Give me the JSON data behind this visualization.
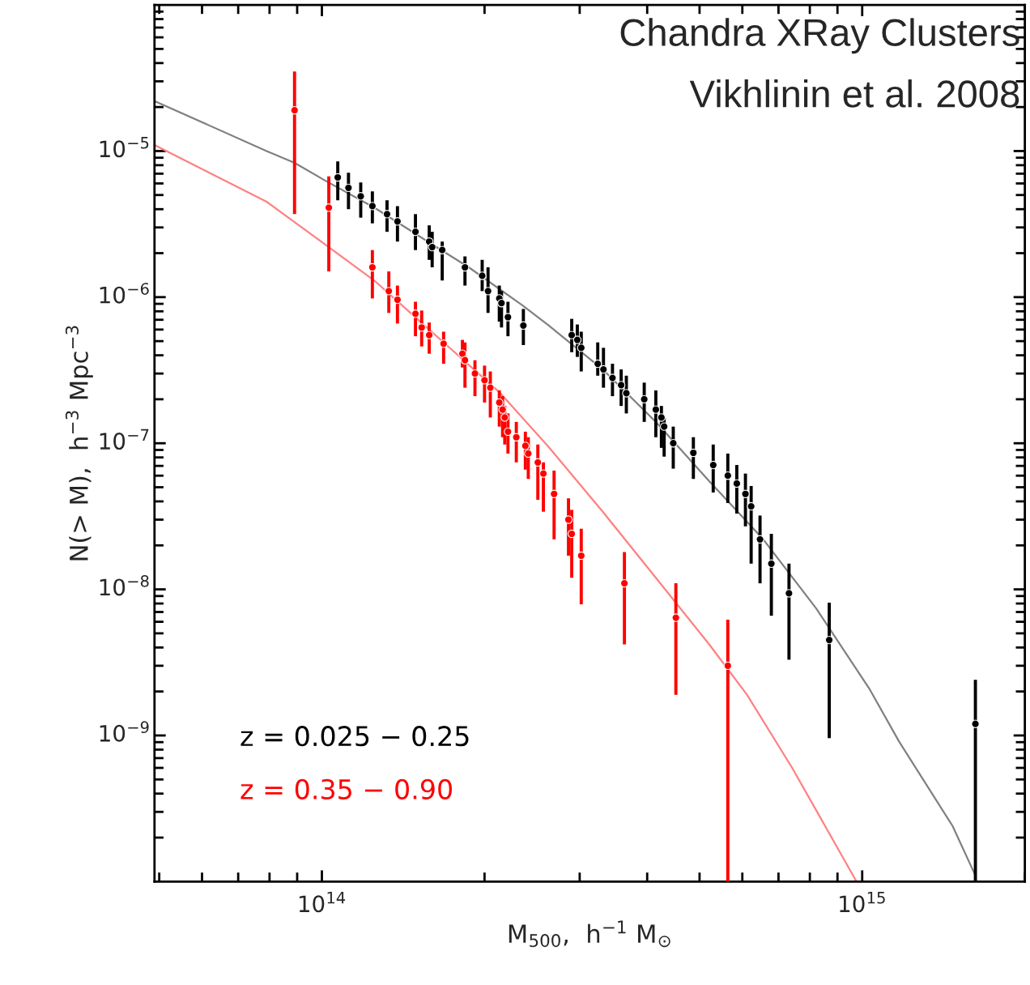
{
  "chart_data": {
    "type": "scatter",
    "xlabel": "M$_{500}$,  h$^{−1}$ M$_{⊙}$",
    "ylabel": "N(> M),  h$^{−3}$ Mpc$^{−3}$",
    "annotations": [
      "Chandra XRay Clusters",
      "Vikhlinin et al. 2008"
    ],
    "log": "xy",
    "xlim": [
      49000000000000.0,
      2000000000000000.0
    ],
    "ylim": [
      1e-10,
      0.0001
    ],
    "xticks": [
      {
        "value": 100000000000000.0,
        "label": "10$^{14}$"
      },
      {
        "value": 1000000000000000.0,
        "label": "10$^{15}$"
      }
    ],
    "yticks": [
      {
        "value": 1e-09,
        "label": "10$^{−9}$"
      },
      {
        "value": 1e-08,
        "label": "10$^{−8}$"
      },
      {
        "value": 1e-07,
        "label": "10$^{−7}$"
      },
      {
        "value": 1e-06,
        "label": "10$^{−6}$"
      },
      {
        "value": 1e-05,
        "label": "10$^{−5}$"
      }
    ],
    "grid": false,
    "legend": "bottom left",
    "marker": "circle",
    "series": [
      {
        "type": "line",
        "marker": "none",
        "color": "#808080",
        "x": [
          49000000000000.0,
          79000000000000.0,
          89000000000000.0,
          102000000000000.0,
          125000000000000.0,
          157000000000000.0,
          187000000000000.0,
          235000000000000.0,
          263000000000000.0,
          331000000000000.0,
          415000000000000.0,
          521000000000000.0,
          656000000000000.0,
          822000000000000.0,
          1030000000000000.0,
          1170000000000000.0,
          1470000000000000.0,
          1620000000000000.0
        ],
        "values": [
          2.2e-05,
          1e-05,
          8.3e-06,
          6.2e-06,
          4.1e-06,
          2.4e-06,
          1.6e-06,
          8.8e-07,
          6.4e-07,
          3.2e-07,
          1.4e-07,
          5.5e-08,
          2.2e-08,
          7.4e-09,
          2.1e-09,
          9.1e-10,
          2.4e-10,
          1.1e-10
        ]
      },
      {
        "type": "line",
        "marker": "none",
        "color": "#ff8080",
        "x": [
          49000000000000.0,
          79000000000000.0,
          103000000000000.0,
          125000000000000.0,
          176000000000000.0,
          214000000000000.0,
          263000000000000.0,
          331000000000000.0,
          415000000000000.0,
          521000000000000.0,
          612000000000000.0,
          742000000000000.0,
          976000000000000.0
        ],
        "values": [
          1.1e-05,
          4.5e-06,
          2.2e-06,
          1.3e-06,
          4.2e-07,
          2.2e-07,
          9.4e-08,
          3.4e-08,
          1.2e-08,
          4.2e-09,
          1.9e-09,
          6e-10,
          1e-10
        ]
      },
      {
        "name": "z = 0.025 − 0.25",
        "color": "#000000",
        "x": [
          107000000000000.0,
          112000000000000.0,
          118000000000000.0,
          124000000000000.0,
          132000000000000.0,
          138000000000000.0,
          149000000000000.0,
          158000000000000.0,
          160000000000000.0,
          167000000000000.0,
          184000000000000.0,
          198000000000000.0,
          203000000000000.0,
          213000000000000.0,
          215000000000000.0,
          221000000000000.0,
          236000000000000.0,
          290000000000000.0,
          297000000000000.0,
          302000000000000.0,
          324000000000000.0,
          332000000000000.0,
          345000000000000.0,
          358000000000000.0,
          366000000000000.0,
          395000000000000.0,
          415000000000000.0,
          425000000000000.0,
          430000000000000.0,
          447000000000000.0,
          487000000000000.0,
          530000000000000.0,
          564000000000000.0,
          586000000000000.0,
          608000000000000.0,
          623000000000000.0,
          647000000000000.0,
          679000000000000.0,
          732000000000000.0,
          869000000000000.0,
          1620000000000000.0
        ],
        "values": [
          6.6e-06,
          5.6e-06,
          4.9e-06,
          4.2e-06,
          3.7e-06,
          3.3e-06,
          2.8e-06,
          2.4e-06,
          2.2e-06,
          2.1e-06,
          1.6e-06,
          1.4e-06,
          1.1e-06,
          9.8e-07,
          9.1e-07,
          7.3e-07,
          6.4e-07,
          5.5e-07,
          5.1e-07,
          4.5e-07,
          3.5e-07,
          3.2e-07,
          2.8e-07,
          2.5e-07,
          2.2e-07,
          2e-07,
          1.7e-07,
          1.5e-07,
          1.3e-07,
          1e-07,
          8.6e-08,
          7.1e-08,
          6e-08,
          5.3e-08,
          4.5e-08,
          3.7e-08,
          2.2e-08,
          1.5e-08,
          9.4e-09,
          4.5e-09,
          1.2e-09
        ],
        "errors": [
          [
            4.6e-06,
            8.5e-06
          ],
          [
            4e-06,
            7.1e-06
          ],
          [
            3.5e-06,
            6.1e-06
          ],
          [
            3.2e-06,
            5.3e-06
          ],
          [
            2.8e-06,
            4.6e-06
          ],
          [
            2.4e-06,
            4.2e-06
          ],
          [
            2.1e-06,
            3.7e-06
          ],
          [
            1.8e-06,
            3.1e-06
          ],
          [
            1.6e-06,
            2.8e-06
          ],
          [
            1.3e-06,
            2.4e-06
          ],
          [
            1.2e-06,
            1.9e-06
          ],
          [
            1.1e-06,
            1.8e-06
          ],
          [
            7.8e-07,
            1.6e-06
          ],
          [
            6.8e-07,
            1.2e-06
          ],
          [
            6.2e-07,
            1.1e-06
          ],
          [
            5.4e-07,
            9.3e-07
          ],
          [
            4.7e-07,
            8.3e-07
          ],
          [
            4.2e-07,
            7.1e-07
          ],
          [
            3.9e-07,
            6.5e-07
          ],
          [
            3.1e-07,
            5.8e-07
          ],
          [
            2.9e-07,
            4.9e-07
          ],
          [
            2.4e-07,
            4.5e-07
          ],
          [
            2.1e-07,
            3.5e-07
          ],
          [
            1.8e-07,
            3.2e-07
          ],
          [
            1.6e-07,
            2.9e-07
          ],
          [
            1.4e-07,
            2.6e-07
          ],
          [
            1.1e-07,
            2.3e-07
          ],
          [
            9.3e-08,
            1.8e-07
          ],
          [
            8.1e-08,
            1.5e-07
          ],
          [
            6.7e-08,
            1.3e-07
          ],
          [
            5.7e-08,
            1.1e-07
          ],
          [
            4.6e-08,
            9.8e-08
          ],
          [
            3.9e-08,
            8.5e-08
          ],
          [
            3.3e-08,
            7.1e-08
          ],
          [
            2.7e-08,
            6.2e-08
          ],
          [
            1.5e-08,
            5.1e-08
          ],
          [
            1.1e-08,
            3.2e-08
          ],
          [
            6.6e-09,
            2.4e-08
          ],
          [
            3.3e-09,
            1.5e-08
          ],
          [
            9.6e-10,
            8.1e-09
          ],
          [
            1e-10,
            2.4e-09
          ]
        ]
      },
      {
        "name": "z = 0.35 − 0.90",
        "color": "#ff0000",
        "x": [
          89000000000000.0,
          103000000000000.0,
          124000000000000.0,
          133000000000000.0,
          138000000000000.0,
          149000000000000.0,
          153000000000000.0,
          158000000000000.0,
          168000000000000.0,
          182000000000000.0,
          184000000000000.0,
          192000000000000.0,
          200000000000000.0,
          205000000000000.0,
          213000000000000.0,
          216000000000000.0,
          218000000000000.0,
          221000000000000.0,
          229000000000000.0,
          238000000000000.0,
          241000000000000.0,
          251000000000000.0,
          257000000000000.0,
          269000000000000.0,
          286000000000000.0,
          290000000000000.0,
          302000000000000.0,
          363000000000000.0,
          452000000000000.0,
          564000000000000.0
        ],
        "values": [
          1.9e-05,
          4.1e-06,
          1.6e-06,
          1.1e-06,
          9.6e-07,
          7.7e-07,
          6.2e-07,
          5.5e-07,
          4.8e-07,
          4.1e-07,
          3.7e-07,
          3e-07,
          2.7e-07,
          2.4e-07,
          1.9e-07,
          1.7e-07,
          1.5e-07,
          1.2e-07,
          1.1e-07,
          9.6e-08,
          8.5e-08,
          7.4e-08,
          6.2e-08,
          4.5e-08,
          3e-08,
          2.4e-08,
          1.7e-08,
          1.1e-08,
          6.4e-09,
          3e-09
        ],
        "errors": [
          [
            3.7e-06,
            3.5e-05
          ],
          [
            1.5e-06,
            6.7e-06
          ],
          [
            9.8e-07,
            2.1e-06
          ],
          [
            7.8e-07,
            1.5e-06
          ],
          [
            6.6e-07,
            1.2e-06
          ],
          [
            5.4e-07,
            9.3e-07
          ],
          [
            4.6e-07,
            8.1e-07
          ],
          [
            4.1e-07,
            6.7e-07
          ],
          [
            3.5e-07,
            5.8e-07
          ],
          [
            3.3e-07,
            5.1e-07
          ],
          [
            2.4e-07,
            4.9e-07
          ],
          [
            2.1e-07,
            3.7e-07
          ],
          [
            1.9e-07,
            3.4e-07
          ],
          [
            1.5e-07,
            3.1e-07
          ],
          [
            1.3e-07,
            2.3e-07
          ],
          [
            1.1e-07,
            2.1e-07
          ],
          [
            9.8e-08,
            1.8e-07
          ],
          [
            8.5e-08,
            1.6e-07
          ],
          [
            7.4e-08,
            1.4e-07
          ],
          [
            6.6e-08,
            1.2e-07
          ],
          [
            5.7e-08,
            1.1e-07
          ],
          [
            4.1e-08,
            9.8e-08
          ],
          [
            3.4e-08,
            7.4e-08
          ],
          [
            2.2e-08,
            6.5e-08
          ],
          [
            1.7e-08,
            4.2e-08
          ],
          [
            1.2e-08,
            3.5e-08
          ],
          [
            7.9e-09,
            2.6e-08
          ],
          [
            4.2e-09,
            1.8e-08
          ],
          [
            1.9e-09,
            1.1e-08
          ],
          [
            1e-10,
            6.2e-09
          ]
        ]
      }
    ]
  }
}
